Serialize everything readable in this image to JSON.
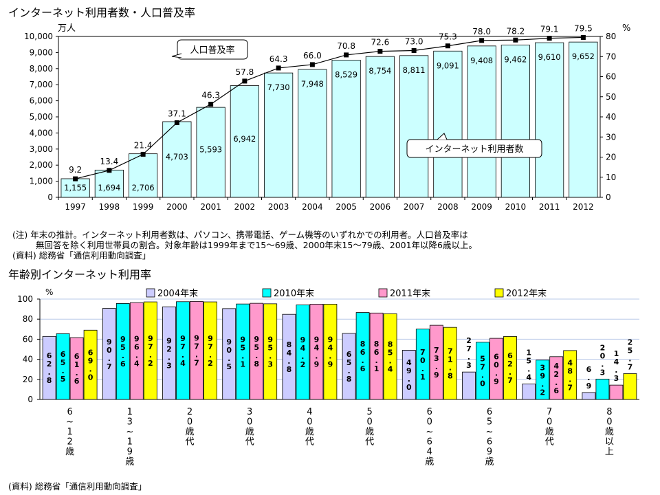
{
  "chart1": {
    "title": "インターネット利用者数・人口普及率",
    "left_unit": "万人",
    "right_unit": "%",
    "callout_line": "人口普及率",
    "callout_bar": "インターネット利用者数",
    "notes": [
      "(注) 年末の推計。インターネット利用者数は、パソコン、携帯電話、ゲーム機等のいずれかでの利用者。人口普及率は",
      "無回答を除く利用世帯員の割合。対象年齢は1999年まで15〜69歳、2000年末15〜79歳、2001年以降6歳以上。",
      "(資料) 総務省「通信利用動向調査」"
    ]
  },
  "chart2": {
    "title": "年齢別インターネット利用率",
    "unit": "%",
    "source": "(資料) 総務省「通信利用動向調査」"
  },
  "chart_data": [
    {
      "type": "bar",
      "title": "インターネット利用者数・人口普及率",
      "categories": [
        "1997",
        "1998",
        "1999",
        "2000",
        "2001",
        "2002",
        "2003",
        "2004",
        "2005",
        "2006",
        "2007",
        "2008",
        "2009",
        "2010",
        "2011",
        "2012"
      ],
      "series": [
        {
          "name": "インターネット利用者数",
          "unit": "万人",
          "axis": "left",
          "values": [
            1155,
            1694,
            2706,
            4703,
            5593,
            6942,
            7730,
            7948,
            8529,
            8754,
            8811,
            9091,
            9408,
            9462,
            9610,
            9652
          ],
          "labels": [
            "1,155",
            "1,694",
            "2,706",
            "4,703",
            "5,593",
            "6,942",
            "7,730",
            "7,948",
            "8,529",
            "8,754",
            "8,811",
            "9,091",
            "9,408",
            "9,462",
            "9,610",
            "9,652"
          ],
          "color": "#ccffff"
        },
        {
          "name": "人口普及率",
          "unit": "%",
          "axis": "right",
          "type": "line",
          "values": [
            9.2,
            13.4,
            21.4,
            37.1,
            46.3,
            57.8,
            64.3,
            66.0,
            70.8,
            72.6,
            73.0,
            75.3,
            78.0,
            78.2,
            79.1,
            79.5
          ],
          "labels": [
            "9.2",
            "13.4",
            "21.4",
            "37.1",
            "46.3",
            "57.8",
            "64.3",
            "66.0",
            "70.8",
            "72.6",
            "73.0",
            "75.3",
            "78.0",
            "78.2",
            "79.1",
            "79.5"
          ],
          "color": "#000000"
        }
      ],
      "ylim_left": [
        0,
        10000
      ],
      "ylim_right": [
        0,
        80
      ],
      "yticks_left": [
        "0",
        "1,000",
        "2,000",
        "3,000",
        "4,000",
        "5,000",
        "6,000",
        "7,000",
        "8,000",
        "9,000",
        "10,000"
      ],
      "yticks_right": [
        "0",
        "10",
        "20",
        "30",
        "40",
        "50",
        "60",
        "70",
        "80"
      ],
      "grid": false
    },
    {
      "type": "bar",
      "title": "年齢別インターネット利用率",
      "categories": [
        "6~12歳",
        "13~19歳",
        "20歳代",
        "30歳代",
        "40歳代",
        "50歳代",
        "60~64歳",
        "65~69歳",
        "70歳代",
        "80歳以上"
      ],
      "category_labels": [
        [
          "6",
          "~",
          "1",
          "2",
          "歳"
        ],
        [
          "1",
          "3",
          "~",
          "1",
          "9",
          "歳"
        ],
        [
          "2",
          "0",
          "歳",
          "代"
        ],
        [
          "3",
          "0",
          "歳",
          "代"
        ],
        [
          "4",
          "0",
          "歳",
          "代"
        ],
        [
          "5",
          "0",
          "歳",
          "代"
        ],
        [
          "6",
          "0",
          "~",
          "6",
          "4",
          "歳"
        ],
        [
          "6",
          "5",
          "~",
          "6",
          "9",
          "歳"
        ],
        [
          "7",
          "0",
          "歳",
          "代"
        ],
        [
          "8",
          "0",
          "歳",
          "以",
          "上"
        ]
      ],
      "series": [
        {
          "name": "2004年末",
          "color": "#ccccff",
          "values": [
            62.8,
            90.7,
            92.3,
            90.5,
            84.8,
            65.8,
            49.0,
            27.3,
            15.4,
            6.9
          ]
        },
        {
          "name": "2010年末",
          "color": "#00ffff",
          "values": [
            65.5,
            95.6,
            97.4,
            95.1,
            94.2,
            86.6,
            70.1,
            57.0,
            39.2,
            20.3
          ]
        },
        {
          "name": "2011年末",
          "color": "#ff99cc",
          "values": [
            61.6,
            96.4,
            97.7,
            95.8,
            94.9,
            86.1,
            73.9,
            60.9,
            42.6,
            14.3
          ]
        },
        {
          "name": "2012年末",
          "color": "#ffff00",
          "values": [
            69.0,
            97.2,
            97.2,
            95.3,
            94.9,
            85.4,
            71.8,
            62.7,
            48.7,
            25.7
          ]
        }
      ],
      "ylim": [
        0,
        100
      ],
      "yticks": [
        "0",
        "20",
        "40",
        "60",
        "80",
        "100"
      ],
      "grid": true,
      "legend": "top"
    }
  ]
}
